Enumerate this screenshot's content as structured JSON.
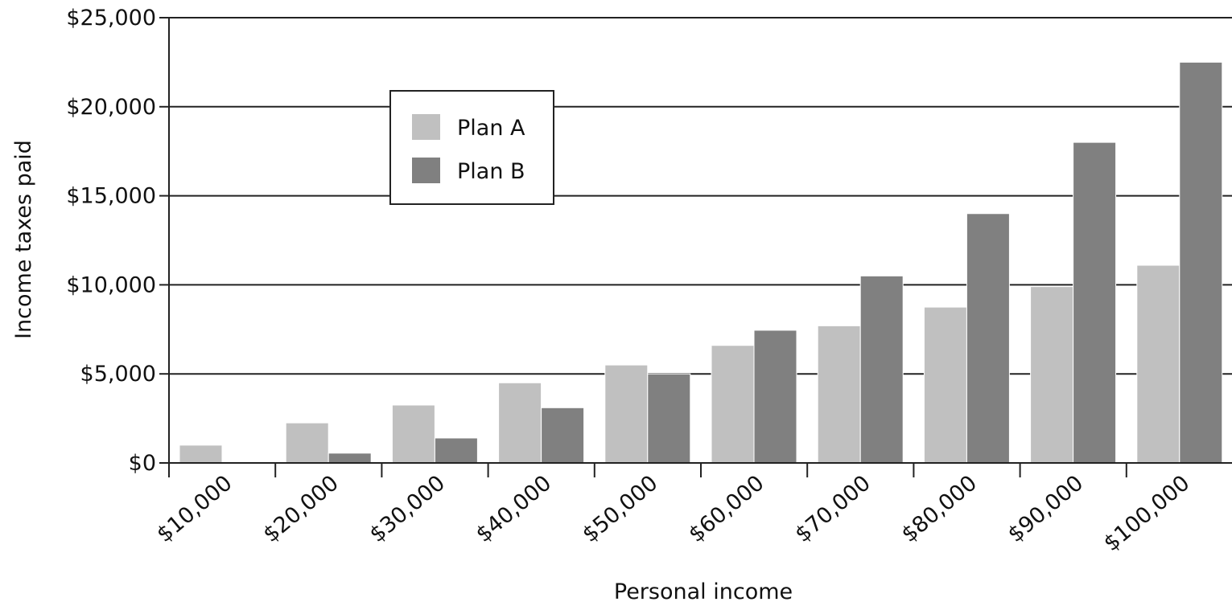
{
  "chart_data": {
    "type": "bar",
    "title": "",
    "xlabel": "Personal income",
    "ylabel": "Income taxes paid",
    "categories": [
      "$10,000",
      "$20,000",
      "$30,000",
      "$40,000",
      "$50,000",
      "$60,000",
      "$70,000",
      "$80,000",
      "$90,000",
      "$100,000"
    ],
    "series": [
      {
        "name": "Plan A",
        "color": "#c0c0c0",
        "values": [
          1000,
          2250,
          3250,
          4500,
          5500,
          6600,
          7700,
          8750,
          9900,
          11100
        ]
      },
      {
        "name": "Plan B",
        "color": "#808080",
        "values": [
          0,
          550,
          1400,
          3100,
          5000,
          7450,
          10500,
          14000,
          18000,
          22500
        ]
      }
    ],
    "ylim": [
      0,
      25000
    ],
    "yticks": [
      0,
      5000,
      10000,
      15000,
      20000,
      25000
    ],
    "ytick_labels": [
      "$0",
      "$5,000",
      "$10,000",
      "$15,000",
      "$20,000",
      "$25,000"
    ],
    "grid": true,
    "legend_position": "top-left"
  }
}
